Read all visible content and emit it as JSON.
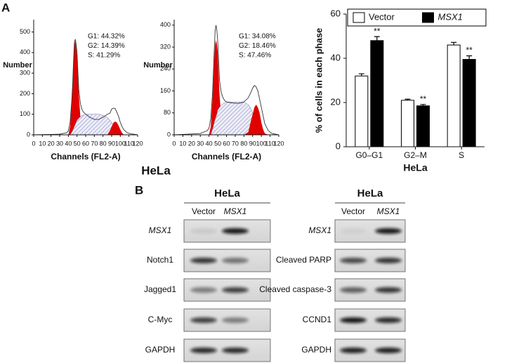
{
  "panel_labels": [
    "A",
    "B"
  ],
  "flow_group_label": "HeLa",
  "chart_data": [
    {
      "type": "line",
      "xlabel": "Channels (FL2-A)",
      "ylabel": "Number",
      "annotations": [
        "G1: 44.32%",
        "G2: 14.39%",
        "S: 41.29%"
      ],
      "xlim": [
        0,
        120
      ],
      "xticks": [
        0,
        10,
        20,
        30,
        40,
        50,
        60,
        70,
        80,
        90,
        100,
        110,
        120
      ],
      "ylim": [
        0,
        560
      ],
      "yticks": [
        0,
        100,
        200,
        300,
        400,
        500
      ],
      "x": [
        0,
        20,
        30,
        38,
        40,
        42,
        44,
        45,
        46,
        47,
        48,
        49,
        50,
        52,
        54,
        56,
        58,
        60,
        65,
        70,
        75,
        80,
        85,
        88,
        90,
        92,
        94,
        96,
        98,
        100,
        102,
        104,
        108,
        112,
        120
      ],
      "series": [
        {
          "color": "#e00000",
          "filled": true,
          "values": [
            null,
            null,
            null,
            null,
            0,
            40,
            160,
            240,
            350,
            440,
            455,
            430,
            380,
            200,
            80,
            25,
            0,
            null,
            null,
            null,
            null,
            null,
            null,
            null,
            null,
            null,
            null,
            null,
            null,
            null,
            null,
            null,
            null,
            null,
            null
          ]
        },
        {
          "color": "#8c8cc8",
          "filled": true,
          "hatch": true,
          "values": [
            null,
            null,
            null,
            null,
            null,
            0,
            12,
            20,
            30,
            40,
            50,
            60,
            70,
            80,
            88,
            93,
            97,
            100,
            100,
            100,
            100,
            95,
            85,
            70,
            60,
            45,
            35,
            25,
            12,
            5,
            0,
            null,
            null,
            null,
            null
          ]
        },
        {
          "color": "#e00000",
          "filled": true,
          "values": [
            null,
            null,
            null,
            null,
            null,
            null,
            null,
            null,
            null,
            null,
            null,
            null,
            null,
            null,
            null,
            null,
            null,
            null,
            null,
            null,
            null,
            null,
            0,
            20,
            40,
            58,
            65,
            60,
            45,
            25,
            10,
            0,
            null,
            null,
            null
          ]
        },
        {
          "color": "#333333",
          "filled": false,
          "values": [
            0,
            2,
            3,
            10,
            20,
            60,
            170,
            250,
            360,
            450,
            465,
            440,
            400,
            220,
            150,
            120,
            108,
            100,
            85,
            75,
            75,
            85,
            100,
            105,
            125,
            130,
            128,
            110,
            90,
            60,
            40,
            25,
            10,
            5,
            0
          ]
        }
      ]
    },
    {
      "type": "line",
      "xlabel": "Channels (FL2-A)",
      "ylabel": "Number",
      "annotations": [
        "G1: 34.08%",
        "G2: 18.46%",
        "S: 47.46%"
      ],
      "xlim": [
        0,
        120
      ],
      "xticks": [
        0,
        10,
        20,
        30,
        40,
        50,
        60,
        70,
        80,
        90,
        100,
        110,
        120
      ],
      "ylim": [
        0,
        420
      ],
      "yticks": [
        0,
        80,
        160,
        240,
        320,
        400
      ],
      "x": [
        0,
        20,
        30,
        38,
        40,
        42,
        44,
        45,
        46,
        47,
        48,
        49,
        50,
        52,
        54,
        56,
        58,
        60,
        65,
        70,
        75,
        80,
        85,
        88,
        90,
        92,
        94,
        96,
        98,
        100,
        102,
        104,
        108,
        112,
        120
      ],
      "series": [
        {
          "color": "#e00000",
          "filled": true,
          "values": [
            null,
            null,
            null,
            null,
            0,
            30,
            130,
            200,
            280,
            330,
            345,
            330,
            300,
            150,
            60,
            15,
            0,
            null,
            null,
            null,
            null,
            null,
            null,
            null,
            null,
            null,
            null,
            null,
            null,
            null,
            null,
            null,
            null,
            null,
            null
          ]
        },
        {
          "color": "#8c8cc8",
          "filled": true,
          "hatch": true,
          "values": [
            null,
            null,
            null,
            null,
            null,
            0,
            20,
            30,
            45,
            55,
            65,
            75,
            90,
            100,
            108,
            113,
            117,
            120,
            120,
            120,
            120,
            120,
            110,
            95,
            80,
            65,
            50,
            35,
            20,
            10,
            0,
            null,
            null,
            null,
            null
          ]
        },
        {
          "color": "#e00000",
          "filled": true,
          "values": [
            null,
            null,
            null,
            null,
            null,
            null,
            null,
            null,
            null,
            null,
            null,
            null,
            null,
            null,
            null,
            null,
            null,
            null,
            null,
            null,
            null,
            0,
            10,
            50,
            75,
            100,
            110,
            100,
            80,
            45,
            20,
            5,
            0,
            null,
            null
          ]
        },
        {
          "color": "#333333",
          "filled": false,
          "values": [
            0,
            3,
            5,
            15,
            25,
            60,
            150,
            230,
            310,
            380,
            400,
            380,
            340,
            200,
            155,
            135,
            125,
            120,
            117,
            115,
            115,
            120,
            135,
            155,
            170,
            180,
            175,
            160,
            130,
            100,
            70,
            40,
            15,
            5,
            0
          ]
        }
      ]
    },
    {
      "type": "bar",
      "xlabel": "HeLa",
      "ylabel": "% of cells in each phase",
      "categories": [
        "G0–G1",
        "G2–M",
        "S"
      ],
      "ylim": [
        0,
        60
      ],
      "yticks": [
        0,
        20,
        40,
        60
      ],
      "legend": "top",
      "series": [
        {
          "name": "Vector",
          "color": "#ffffff",
          "italic": false,
          "values": [
            32,
            21,
            46
          ],
          "errors": [
            1,
            0.5,
            1.2
          ]
        },
        {
          "name": "MSX1",
          "color": "#000000",
          "italic": true,
          "values": [
            48,
            18.5,
            39.5
          ],
          "errors": [
            1.8,
            0.6,
            1.6
          ],
          "annotations": [
            "**",
            "**",
            "**"
          ]
        }
      ]
    }
  ],
  "blots": [
    {
      "title": "HeLa",
      "lanes": [
        "Vector",
        "MSX1"
      ],
      "italic_lanes": [
        1
      ],
      "rows": [
        "MSX1",
        "Notch1",
        "Jagged1",
        "C-Myc",
        "GAPDH"
      ],
      "italic_rows": [
        0
      ]
    },
    {
      "title": "HeLa",
      "lanes": [
        "Vector",
        "MSX1"
      ],
      "italic_lanes": [
        1
      ],
      "rows": [
        "MSX1",
        "Cleaved PARP",
        "Cleaved caspase-3",
        "CCND1",
        "GAPDH"
      ],
      "italic_rows": [
        0
      ]
    }
  ]
}
